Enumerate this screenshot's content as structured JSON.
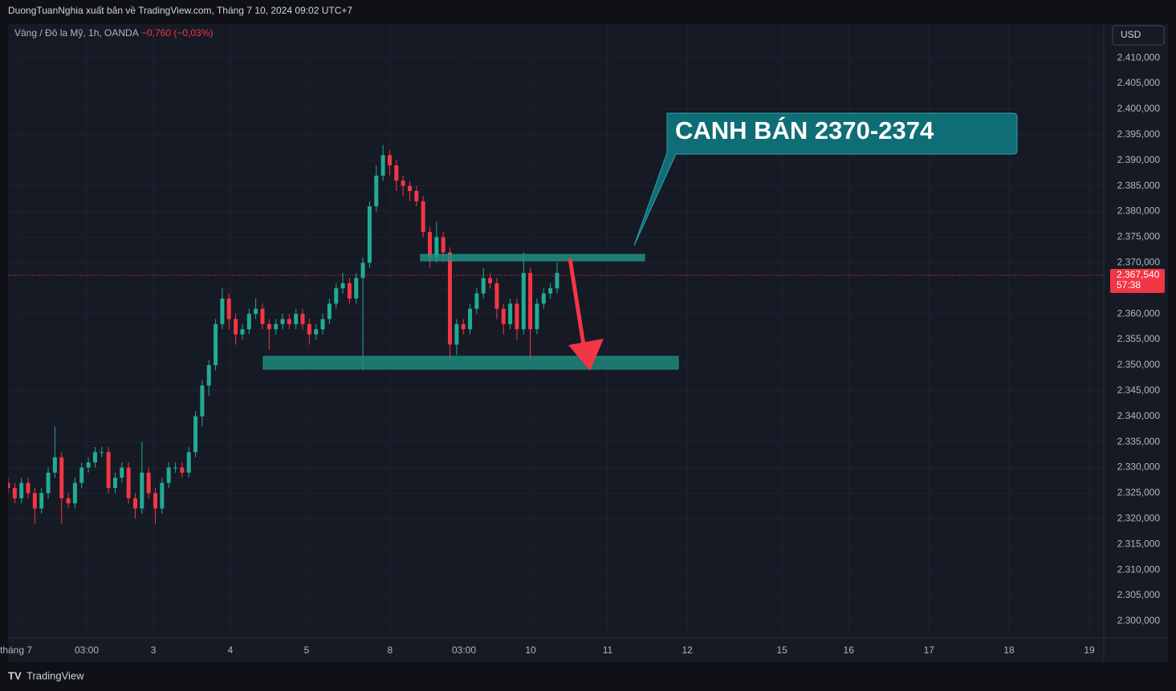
{
  "header": {
    "text": "DuongTuanNghia xuất bản về TradingView.com, Tháng 7 10, 2024 09:02 UTC+7"
  },
  "footer": {
    "text": "TradingView"
  },
  "chart_data": {
    "type": "candlestick",
    "symbol": "Vàng / Đô la Mỹ, 1h, OANDA",
    "change": "−0,760 (−0,03%)",
    "currency": "USD",
    "annotation": "CANH BÁN 2370-2374",
    "last_price": {
      "value": 2367.54,
      "label": "2.367,540"
    },
    "countdown": "57:38",
    "up_color": "#22ab94",
    "down_color": "#f23645",
    "grid": true,
    "xlim": [
      0,
      327.3
    ],
    "xticks": [
      {
        "value": 2.4,
        "label": "tháng 7"
      },
      {
        "value": 23.5,
        "label": "03:00"
      },
      {
        "value": 43.4,
        "label": "3"
      },
      {
        "value": 66.4,
        "label": "4"
      },
      {
        "value": 89.2,
        "label": "5"
      },
      {
        "value": 114.1,
        "label": "8"
      },
      {
        "value": 136.2,
        "label": "03:00"
      },
      {
        "value": 156.1,
        "label": "10"
      },
      {
        "value": 179.1,
        "label": "11"
      },
      {
        "value": 202.9,
        "label": "12"
      },
      {
        "value": 231.2,
        "label": "15"
      },
      {
        "value": 251.1,
        "label": "16"
      },
      {
        "value": 275.1,
        "label": "17"
      },
      {
        "value": 299.0,
        "label": "18"
      },
      {
        "value": 323.0,
        "label": "19"
      }
    ],
    "ylim": [
      2296.7,
      2416.6
    ],
    "yticks": [
      {
        "value": 2300,
        "label": "2.300,000"
      },
      {
        "value": 2305,
        "label": "2.305,000"
      },
      {
        "value": 2310,
        "label": "2.310,000"
      },
      {
        "value": 2315,
        "label": "2.315,000"
      },
      {
        "value": 2320,
        "label": "2.320,000"
      },
      {
        "value": 2325,
        "label": "2.325,000"
      },
      {
        "value": 2330,
        "label": "2.330,000"
      },
      {
        "value": 2335,
        "label": "2.335,000"
      },
      {
        "value": 2340,
        "label": "2.340,000"
      },
      {
        "value": 2345,
        "label": "2.345,000"
      },
      {
        "value": 2350,
        "label": "2.350,000"
      },
      {
        "value": 2355,
        "label": "2.355,000"
      },
      {
        "value": 2360,
        "label": "2.360,000"
      },
      {
        "value": 2365,
        "label": "2.365,000"
      },
      {
        "value": 2370,
        "label": "2.370,000"
      },
      {
        "value": 2375,
        "label": "2.375,000"
      },
      {
        "value": 2380,
        "label": "2.380,000"
      },
      {
        "value": 2385,
        "label": "2.385,000"
      },
      {
        "value": 2390,
        "label": "2.390,000"
      },
      {
        "value": 2395,
        "label": "2.395,000"
      },
      {
        "value": 2400,
        "label": "2.400,000"
      },
      {
        "value": 2405,
        "label": "2.405,000"
      },
      {
        "value": 2410,
        "label": "2.410,000"
      }
    ],
    "x": [
      0,
      2,
      4,
      6,
      8,
      10,
      12,
      14,
      16,
      18,
      20,
      22,
      24,
      26,
      28,
      30,
      32,
      34,
      36,
      38,
      40,
      42,
      44,
      46,
      48,
      50,
      52,
      54,
      56,
      58,
      60,
      62,
      64,
      66,
      68,
      70,
      72,
      74,
      76,
      78,
      80,
      82,
      84,
      86,
      88,
      90,
      92,
      94,
      96,
      98,
      100,
      102,
      104,
      106,
      108,
      110,
      112,
      114,
      116,
      118,
      120,
      122,
      124,
      126,
      128,
      130,
      132,
      134,
      136,
      138,
      140,
      142,
      144,
      146,
      148,
      150,
      152,
      154,
      156,
      158,
      160,
      162,
      164
    ],
    "open": [
      2327,
      2326,
      2324,
      2327,
      2325,
      2322,
      2325,
      2329,
      2332,
      2324,
      2323,
      2327,
      2330,
      2331,
      2333,
      2333,
      2326,
      2328,
      2330,
      2324,
      2322,
      2329,
      2325,
      2322,
      2327,
      2330,
      2330,
      2329,
      2333,
      2340,
      2346,
      2350,
      2358,
      2363,
      2359,
      2356,
      2357,
      2360,
      2361,
      2358,
      2357,
      2358,
      2359,
      2358,
      2360,
      2358,
      2356,
      2357,
      2359,
      2362,
      2365,
      2366,
      2363,
      2367,
      2370,
      2381,
      2387,
      2391,
      2389,
      2386,
      2385,
      2384,
      2382,
      2376,
      2371,
      2375,
      2372,
      2354,
      2358,
      2357,
      2361,
      2364,
      2367,
      2366,
      2361,
      2358,
      2362,
      2357,
      2368,
      2357,
      2362,
      2364,
      2365
    ],
    "high": [
      2328,
      2327,
      2328,
      2328,
      2326,
      2326,
      2330,
      2338,
      2333,
      2325,
      2328,
      2331,
      2332,
      2334,
      2334,
      2334,
      2329,
      2331,
      2331,
      2325,
      2335,
      2330,
      2326,
      2328,
      2331,
      2331,
      2331,
      2334,
      2341,
      2347,
      2351,
      2359,
      2365,
      2364,
      2360,
      2358,
      2361,
      2363,
      2362,
      2359,
      2359,
      2360,
      2360,
      2361,
      2361,
      2359,
      2358,
      2360,
      2363,
      2366,
      2368,
      2367,
      2368,
      2371,
      2382,
      2389,
      2393,
      2392,
      2390,
      2387,
      2386,
      2385,
      2383,
      2377,
      2378,
      2376,
      2373,
      2359,
      2359,
      2362,
      2365,
      2369,
      2368,
      2367,
      2362,
      2363,
      2363,
      2372,
      2369,
      2363,
      2365,
      2366,
      2370
    ],
    "low": [
      2325,
      2323,
      2323,
      2324,
      2319,
      2321,
      2324,
      2328,
      2319,
      2322,
      2322,
      2326,
      2329,
      2330,
      2332,
      2325,
      2325,
      2327,
      2323,
      2320,
      2321,
      2324,
      2319,
      2321,
      2326,
      2329,
      2328,
      2328,
      2332,
      2338,
      2344,
      2349,
      2357,
      2357,
      2354,
      2355,
      2356,
      2359,
      2357,
      2353,
      2356,
      2357,
      2357,
      2357,
      2357,
      2354,
      2355,
      2356,
      2358,
      2361,
      2364,
      2362,
      2362,
      2349,
      2369,
      2380,
      2386,
      2387,
      2384,
      2383,
      2382,
      2381,
      2375,
      2369,
      2370,
      2370,
      2351,
      2352,
      2356,
      2356,
      2360,
      2363,
      2365,
      2359,
      2356,
      2357,
      2355,
      2356,
      2351,
      2356,
      2361,
      2363,
      2364
    ],
    "close": [
      2326,
      2324,
      2327,
      2325,
      2322,
      2325,
      2329,
      2332,
      2324,
      2323,
      2327,
      2330,
      2331,
      2333,
      2333,
      2326,
      2328,
      2330,
      2324,
      2322,
      2329,
      2325,
      2322,
      2327,
      2330,
      2330,
      2329,
      2333,
      2340,
      2346,
      2350,
      2358,
      2363,
      2359,
      2356,
      2357,
      2360,
      2361,
      2358,
      2357,
      2358,
      2359,
      2358,
      2360,
      2358,
      2356,
      2357,
      2359,
      2362,
      2365,
      2366,
      2363,
      2367,
      2370,
      2381,
      2387,
      2391,
      2389,
      2386,
      2385,
      2384,
      2382,
      2376,
      2371,
      2375,
      2372,
      2354,
      2358,
      2357,
      2361,
      2364,
      2367,
      2366,
      2361,
      2358,
      2362,
      2357,
      2368,
      2357,
      2362,
      2364,
      2365,
      2368
    ]
  }
}
